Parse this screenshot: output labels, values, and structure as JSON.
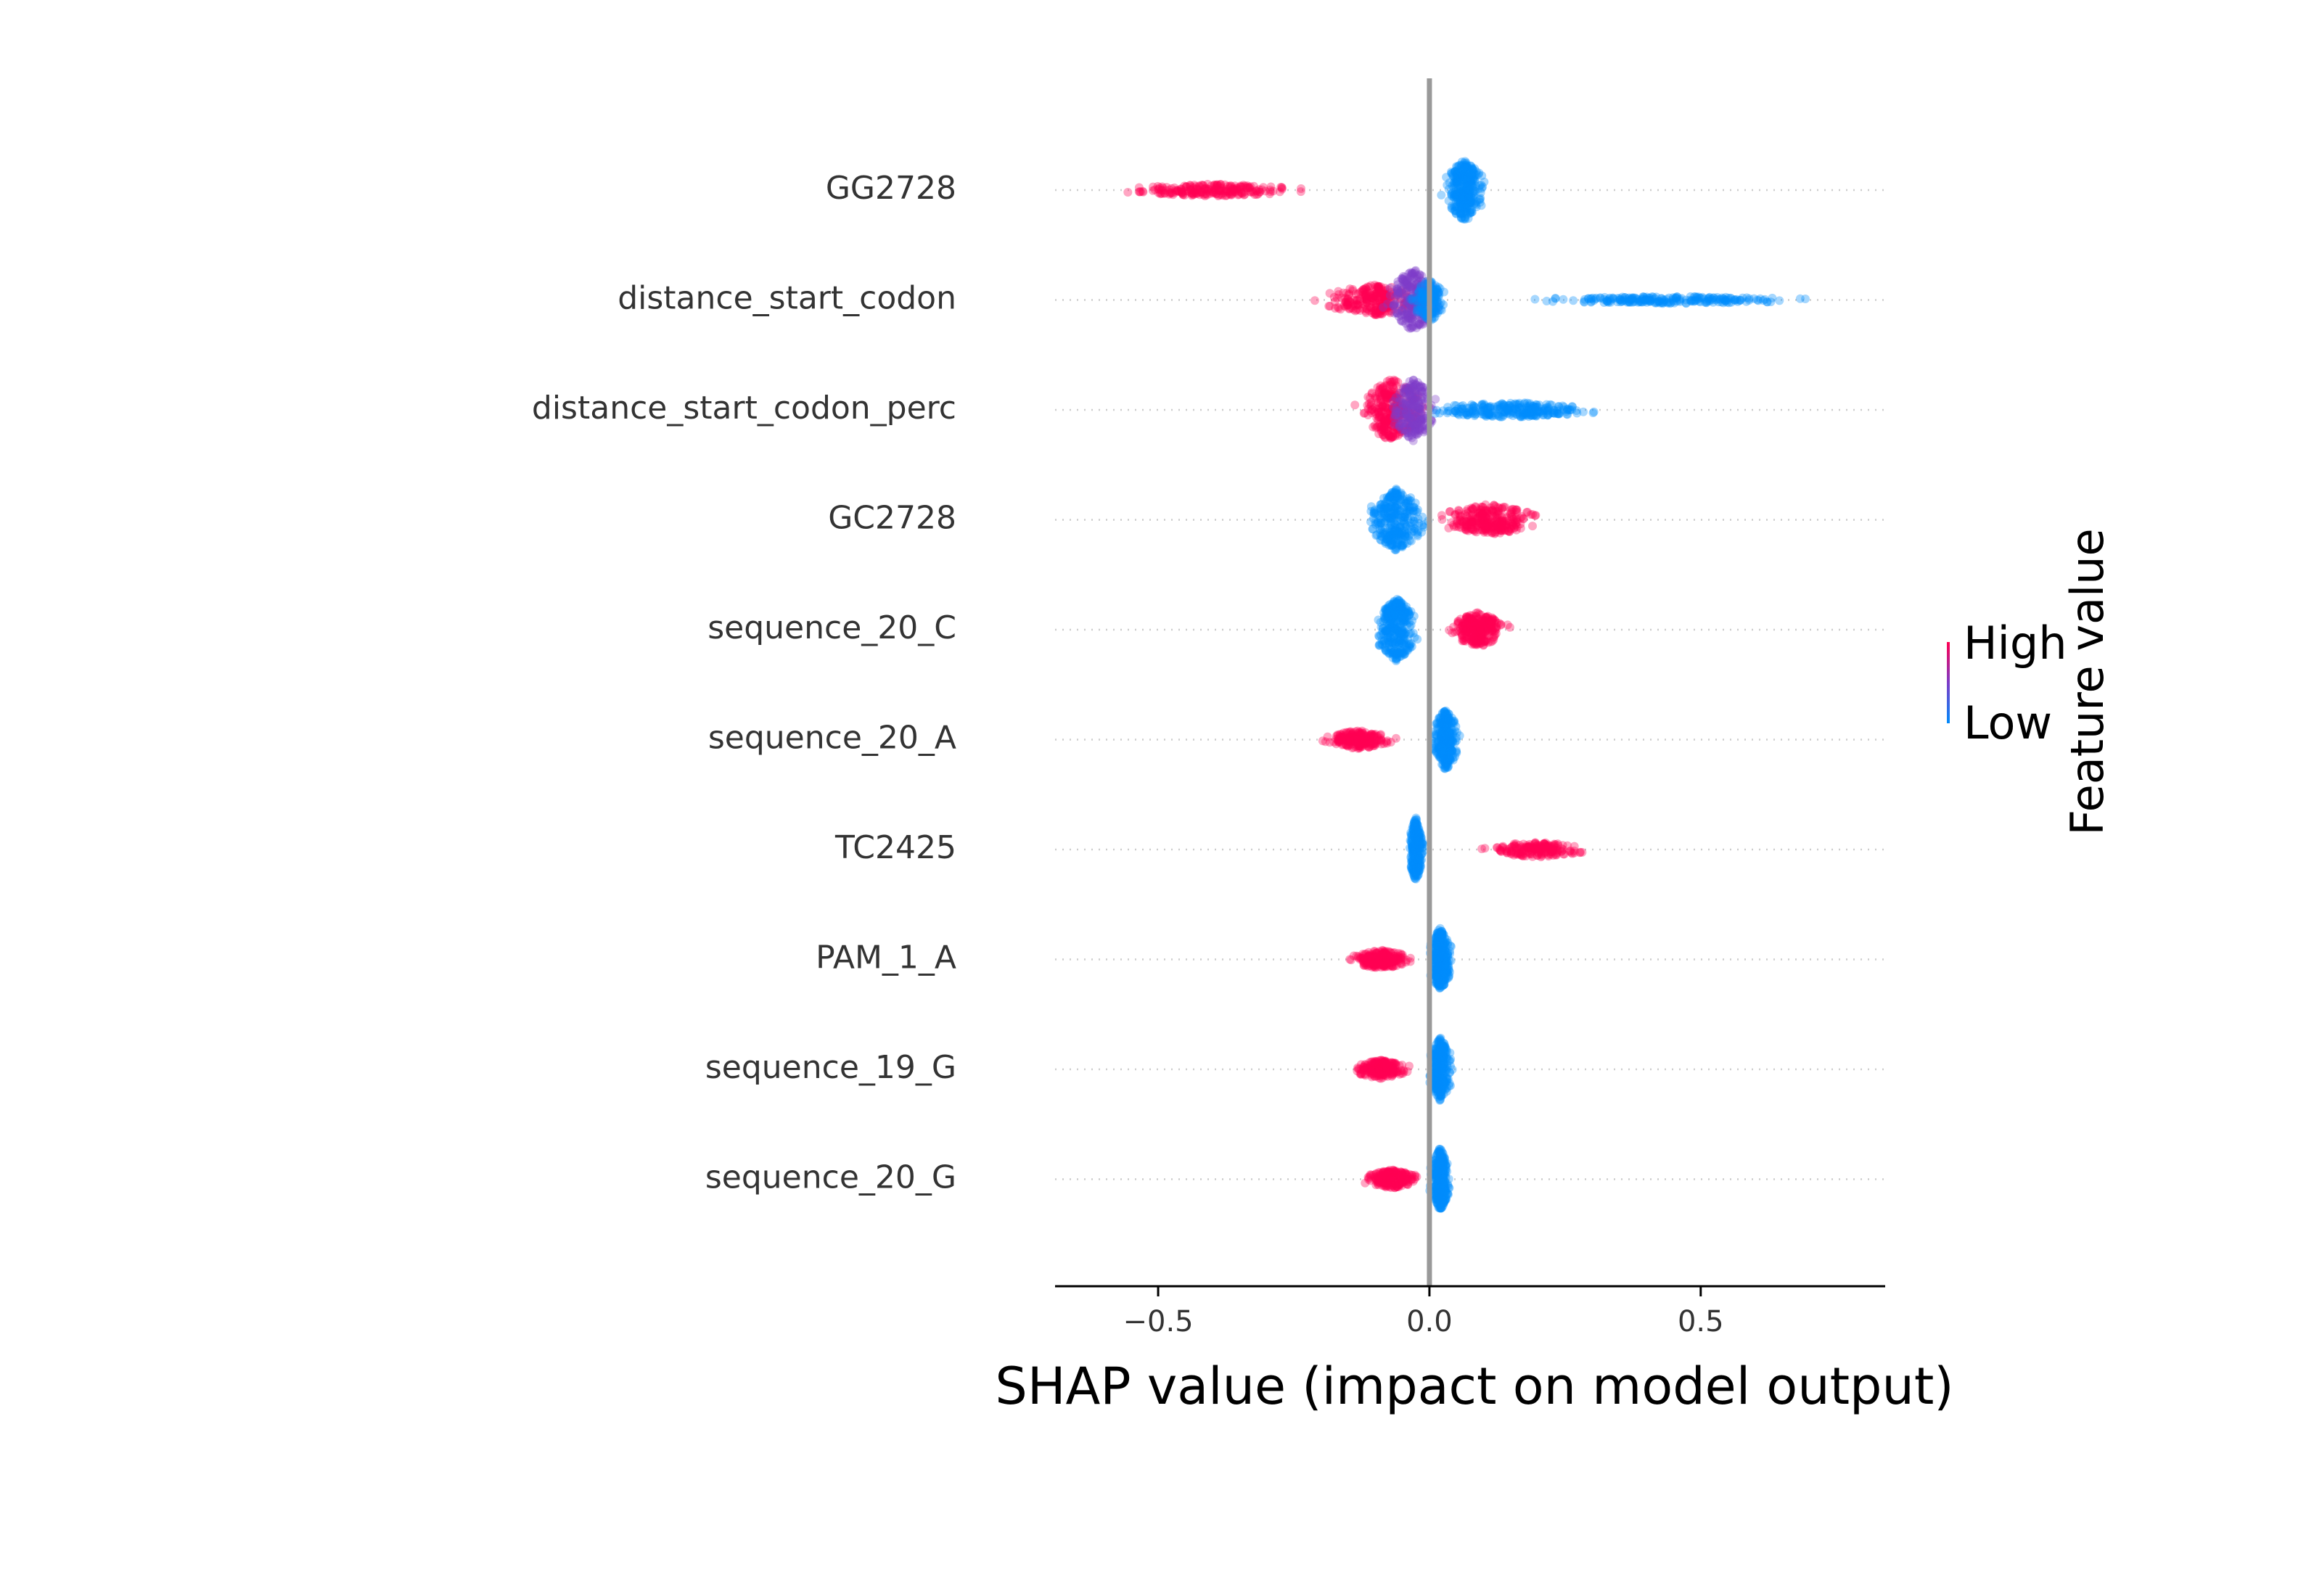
{
  "chart_data": {
    "type": "scatter",
    "subtype": "shap-beeswarm-summary",
    "xlabel": "SHAP value (impact on model output)",
    "xlim": [
      -0.69,
      0.84
    ],
    "xticks": [
      {
        "value": -0.5,
        "label": "−0.5"
      },
      {
        "value": 0.0,
        "label": "0.0"
      },
      {
        "value": 0.5,
        "label": "0.5"
      }
    ],
    "zero_line": 0.0,
    "colors": {
      "high": "#ff0052",
      "low": "#008bfb",
      "mid": "#7d3cc8",
      "zero_line": "#999999",
      "row_guide": "#cccccc",
      "axis": "#000000"
    },
    "colorbar": {
      "title": "Feature value",
      "high_label": "High",
      "low_label": "Low"
    },
    "features": [
      {
        "name": "GG2728",
        "groups": [
          {
            "color": "high",
            "center": -0.4,
            "range": [
              -0.62,
              -0.1
            ],
            "spread": 0.2,
            "count": 220
          },
          {
            "color": "low",
            "center": 0.065,
            "range": [
              0.01,
              0.12
            ],
            "spread": 1.0,
            "count": 320
          }
        ]
      },
      {
        "name": "distance_start_codon",
        "groups": [
          {
            "color": "high",
            "center": -0.1,
            "range": [
              -0.28,
              0.0
            ],
            "spread": 0.5,
            "count": 260
          },
          {
            "color": "mid",
            "center": -0.03,
            "range": [
              -0.12,
              0.02
            ],
            "spread": 1.0,
            "count": 260
          },
          {
            "color": "low",
            "center": 0.0,
            "range": [
              -0.05,
              0.04
            ],
            "spread": 0.7,
            "count": 140
          },
          {
            "color": "low",
            "center": 0.45,
            "range": [
              0.05,
              0.78
            ],
            "spread": 0.12,
            "count": 230
          }
        ]
      },
      {
        "name": "distance_start_codon_perc",
        "groups": [
          {
            "color": "high",
            "center": -0.07,
            "range": [
              -0.17,
              0.0
            ],
            "spread": 1.0,
            "count": 320
          },
          {
            "color": "mid",
            "center": -0.03,
            "range": [
              -0.1,
              0.02
            ],
            "spread": 1.0,
            "count": 220
          },
          {
            "color": "low",
            "center": 0.15,
            "range": [
              0.0,
              0.5
            ],
            "spread": 0.25,
            "count": 260
          }
        ]
      },
      {
        "name": "GC2728",
        "groups": [
          {
            "color": "low",
            "center": -0.06,
            "range": [
              -0.15,
              0.0
            ],
            "spread": 1.0,
            "count": 320
          },
          {
            "color": "high",
            "center": 0.11,
            "range": [
              0.02,
              0.3
            ],
            "spread": 0.5,
            "count": 280
          }
        ]
      },
      {
        "name": "sequence_20_C",
        "groups": [
          {
            "color": "low",
            "center": -0.06,
            "range": [
              -0.12,
              0.0
            ],
            "spread": 1.0,
            "count": 320
          },
          {
            "color": "high",
            "center": 0.09,
            "range": [
              0.02,
              0.18
            ],
            "spread": 0.55,
            "count": 260
          }
        ]
      },
      {
        "name": "sequence_20_A",
        "groups": [
          {
            "color": "high",
            "center": -0.13,
            "range": [
              -0.23,
              -0.04
            ],
            "spread": 0.3,
            "count": 200
          },
          {
            "color": "low",
            "center": 0.03,
            "range": [
              0.0,
              0.07
            ],
            "spread": 1.0,
            "count": 300
          }
        ]
      },
      {
        "name": "TC2425",
        "groups": [
          {
            "color": "low",
            "center": -0.025,
            "range": [
              -0.045,
              -0.005
            ],
            "spread": 1.0,
            "count": 280
          },
          {
            "color": "high",
            "center": 0.2,
            "range": [
              0.05,
              0.32
            ],
            "spread": 0.25,
            "count": 180
          }
        ]
      },
      {
        "name": "PAM_1_A",
        "groups": [
          {
            "color": "high",
            "center": -0.09,
            "range": [
              -0.19,
              -0.02
            ],
            "spread": 0.3,
            "count": 200
          },
          {
            "color": "low",
            "center": 0.02,
            "range": [
              0.0,
              0.065
            ],
            "spread": 1.0,
            "count": 300
          }
        ]
      },
      {
        "name": "sequence_19_G",
        "groups": [
          {
            "color": "high",
            "center": -0.09,
            "range": [
              -0.16,
              -0.01
            ],
            "spread": 0.3,
            "count": 200
          },
          {
            "color": "low",
            "center": 0.02,
            "range": [
              0.0,
              0.07
            ],
            "spread": 1.0,
            "count": 300
          }
        ]
      },
      {
        "name": "sequence_20_G",
        "groups": [
          {
            "color": "high",
            "center": -0.07,
            "range": [
              -0.17,
              -0.02
            ],
            "spread": 0.3,
            "count": 200
          },
          {
            "color": "low",
            "center": 0.02,
            "range": [
              0.0,
              0.055
            ],
            "spread": 1.0,
            "count": 300
          }
        ]
      }
    ]
  }
}
